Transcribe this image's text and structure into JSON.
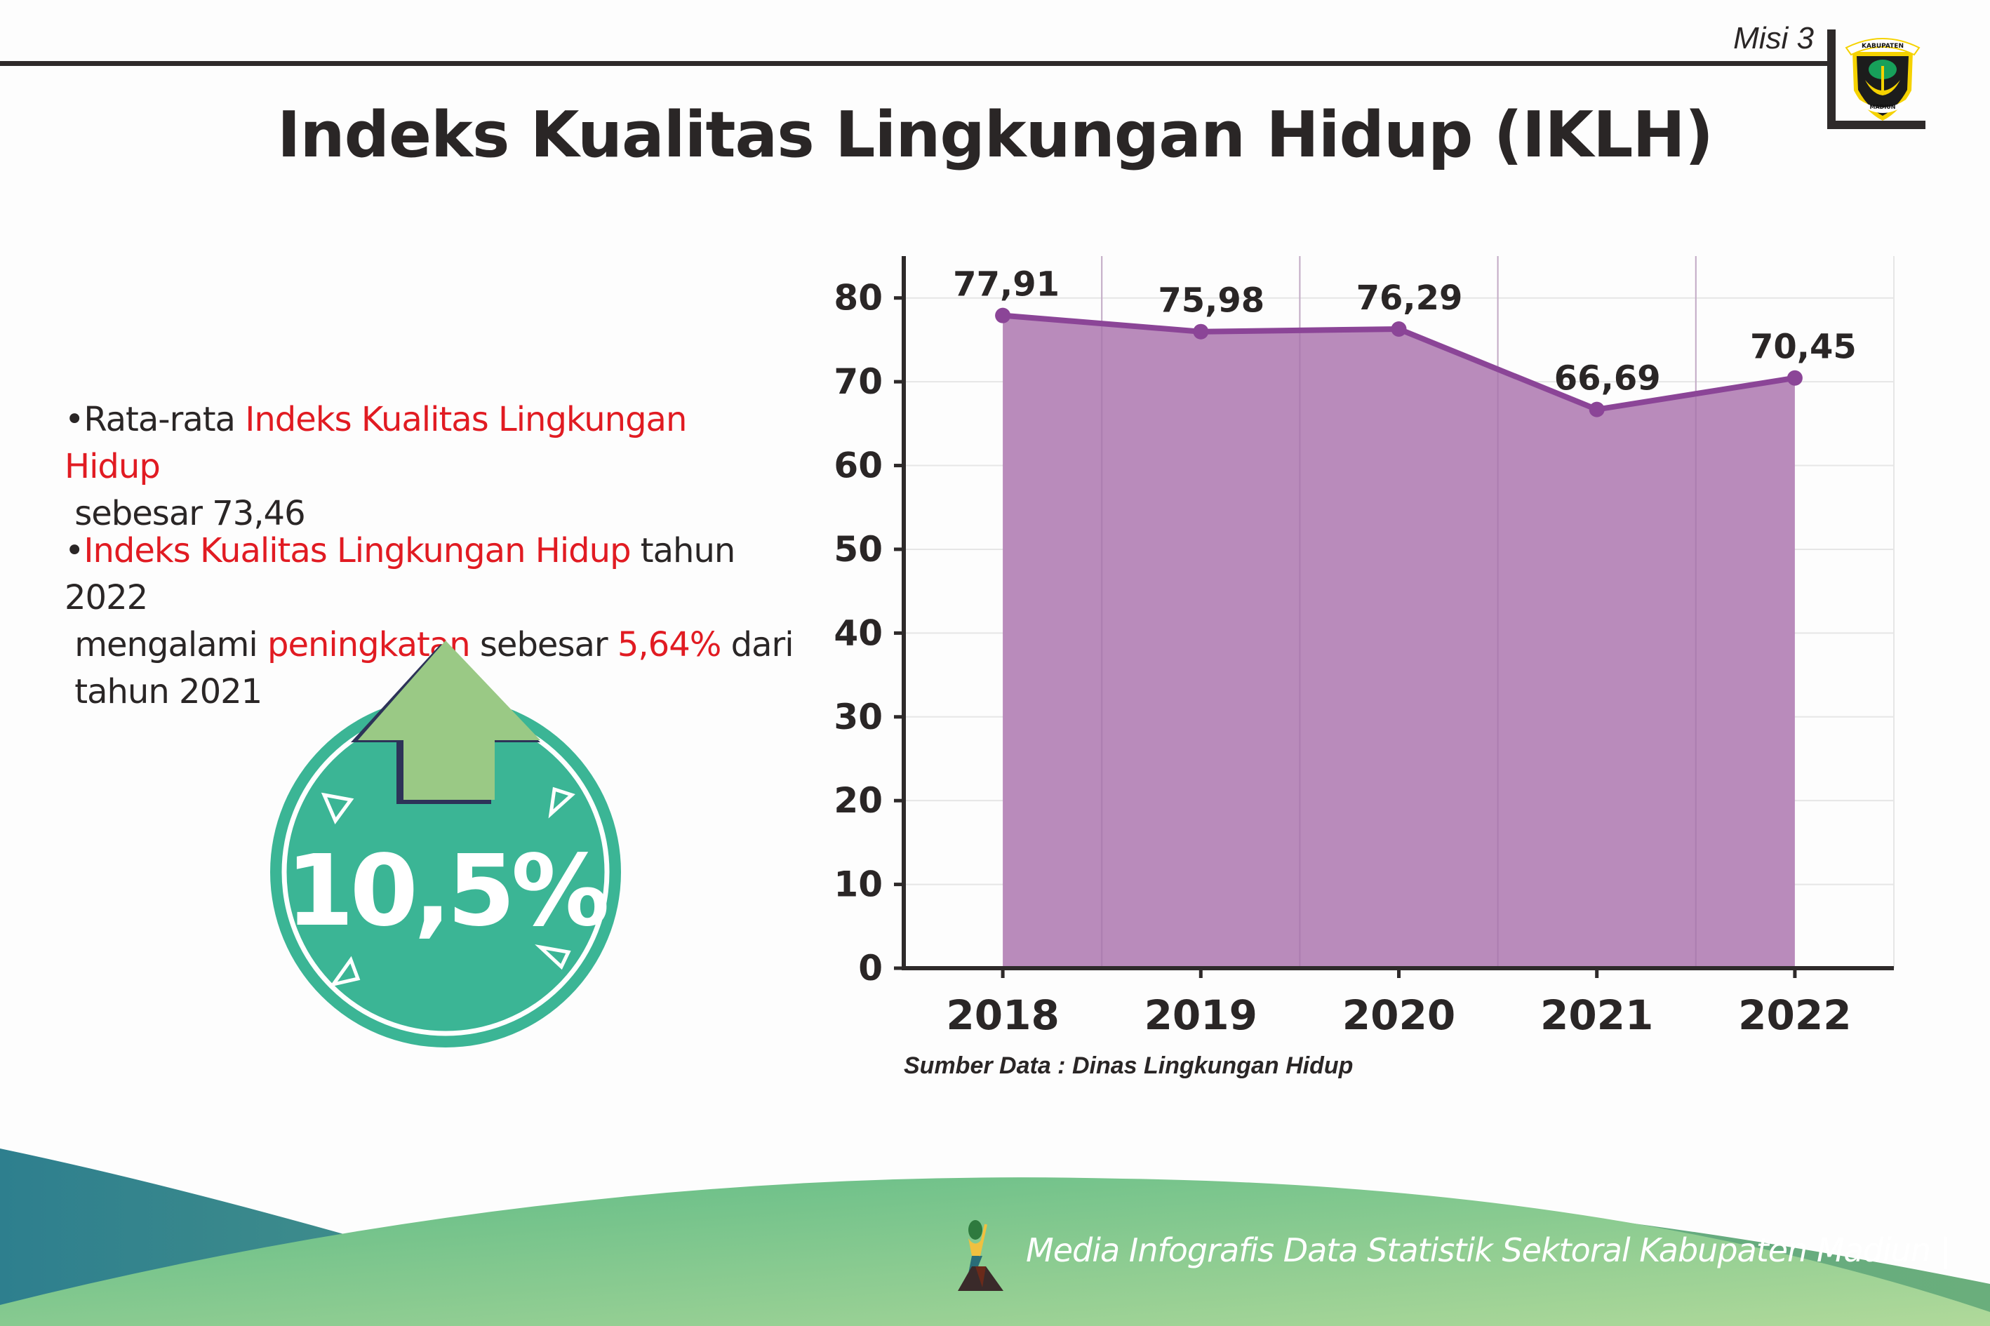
{
  "header": {
    "section_label": "Misi 3",
    "logo_text_top": "KABUPATEN",
    "logo_text_bottom": "MADIUN",
    "title": "Indeks Kualitas Lingkungan Hidup (IKLH)"
  },
  "bullets": [
    {
      "prefix": "Rata-rata ",
      "highlight": "Indeks Kualitas Lingkungan Hidup",
      "line2": "sebesar 73,46"
    },
    {
      "highlight1": "Indeks Kualitas Lingkungan Hidup",
      "text1": " tahun 2022",
      "text2": "mengalami ",
      "highlight2": "peningkatan",
      "text3": " sebesar ",
      "highlight3": "5,64%",
      "text4": " dari",
      "line3": "tahun 2021"
    }
  ],
  "badge": {
    "value": "10,5%",
    "icon": "arrow-up-icon",
    "color": "#3bb595",
    "arrow_color": "#9ac985"
  },
  "chart_data": {
    "type": "area",
    "categories": [
      "2018",
      "2019",
      "2020",
      "2021",
      "2022"
    ],
    "values": [
      77.91,
      75.98,
      76.29,
      66.69,
      70.45
    ],
    "data_labels": [
      "77,91",
      "75,98",
      "76,29",
      "66,69",
      "70,45"
    ],
    "yticks": [
      "0",
      "10",
      "20",
      "30",
      "40",
      "50",
      "60",
      "70",
      "80"
    ],
    "ylim": [
      0,
      85
    ],
    "grid": true,
    "fill_color": "#b787b9",
    "line_color": "#8b4597",
    "title": "",
    "xlabel": "",
    "ylabel": ""
  },
  "source": "Sumber Data : Dinas Lingkungan Hidup",
  "footer": {
    "text": "Media Infografis Data Statistik Sektoral Kabupaten Madiun |"
  }
}
